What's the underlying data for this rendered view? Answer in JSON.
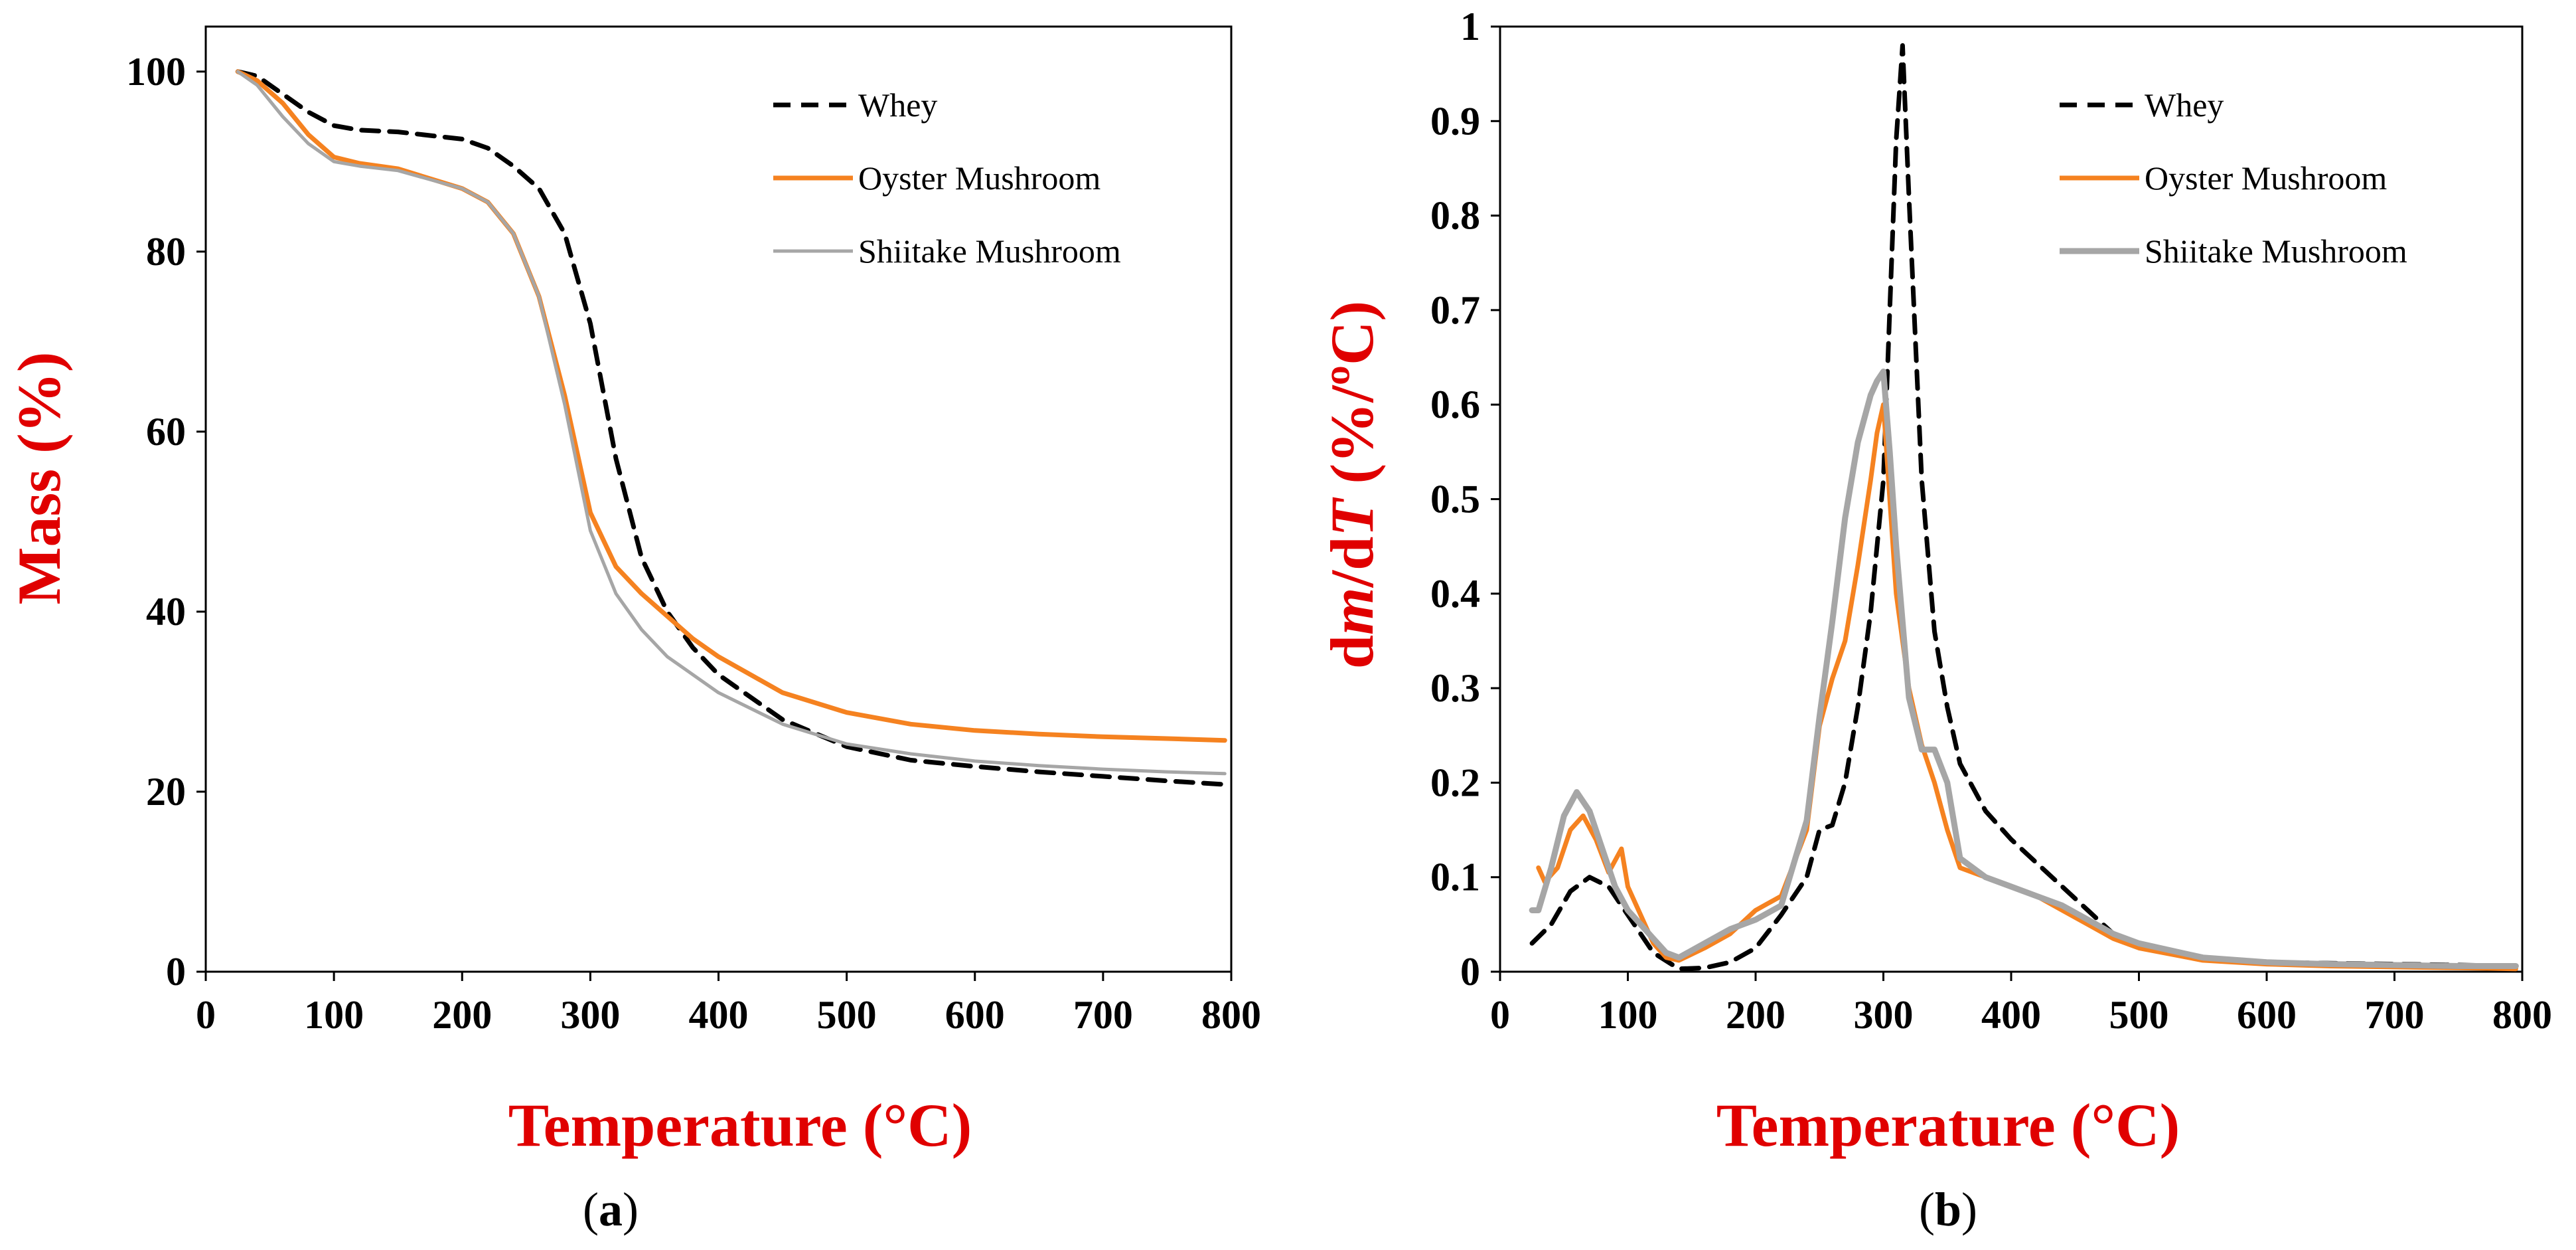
{
  "colors": {
    "whey": "#000000",
    "oyster": "#f58220",
    "shiitake": "#a6a6a6",
    "axis_label": "#e00000"
  },
  "chart_data": [
    {
      "type": "line",
      "panel_label": "(a)",
      "panel_letter": "a",
      "title": "",
      "xlabel": "Temperature (°C)",
      "ylabel": "Mass (%)",
      "xlim": [
        0,
        800
      ],
      "ylim": [
        0,
        105
      ],
      "xticks": [
        0,
        100,
        200,
        300,
        400,
        500,
        600,
        700,
        800
      ],
      "yticks": [
        0,
        20,
        40,
        60,
        80,
        100
      ],
      "grid": false,
      "legend": "top-right",
      "series": [
        {
          "name": "Whey",
          "style": "dashed",
          "color": "#000000",
          "x": [
            25,
            40,
            60,
            80,
            100,
            120,
            150,
            200,
            220,
            240,
            260,
            280,
            300,
            320,
            340,
            360,
            380,
            400,
            450,
            500,
            550,
            600,
            650,
            700,
            750,
            795
          ],
          "y": [
            100,
            99.5,
            97.5,
            95.5,
            94,
            93.5,
            93.3,
            92.5,
            91.5,
            89.5,
            87,
            82,
            72,
            57,
            46,
            40,
            36,
            33,
            28,
            25,
            23.5,
            22.8,
            22.2,
            21.7,
            21.2,
            20.8
          ]
        },
        {
          "name": "Oyster Mushroom",
          "style": "solid",
          "color": "#f58220",
          "x": [
            25,
            40,
            60,
            80,
            100,
            120,
            150,
            200,
            220,
            240,
            260,
            280,
            300,
            320,
            340,
            360,
            380,
            400,
            450,
            500,
            550,
            600,
            650,
            700,
            750,
            795
          ],
          "y": [
            100,
            99,
            96.5,
            93,
            90.5,
            89.8,
            89.2,
            87,
            85.5,
            82,
            75,
            64,
            51,
            45,
            42,
            39.5,
            37,
            35,
            31,
            28.8,
            27.5,
            26.8,
            26.4,
            26.1,
            25.9,
            25.7
          ]
        },
        {
          "name": "Shiitake Mushroom",
          "style": "solid",
          "color": "#a6a6a6",
          "x": [
            25,
            40,
            60,
            80,
            100,
            120,
            150,
            200,
            220,
            240,
            260,
            280,
            300,
            320,
            340,
            360,
            380,
            400,
            450,
            500,
            550,
            600,
            650,
            700,
            750,
            795
          ],
          "y": [
            100,
            98.5,
            95,
            92,
            90,
            89.5,
            89,
            87,
            85.5,
            82,
            75,
            63,
            49,
            42,
            38,
            35,
            33,
            31,
            27.5,
            25.3,
            24.2,
            23.4,
            22.9,
            22.5,
            22.2,
            22
          ]
        }
      ]
    },
    {
      "type": "line",
      "panel_label": "(b)",
      "panel_letter": "b",
      "title": "",
      "xlabel": "Temperature (°C)",
      "ylabel": "dm/dT (%/ºC)",
      "ylabel_parts": {
        "d1": "d",
        "m": "m",
        "slash_d": "/d",
        "T": "T",
        "rest": " (%/ºC)"
      },
      "xlim": [
        0,
        800
      ],
      "ylim": [
        0,
        1
      ],
      "xticks": [
        0,
        100,
        200,
        300,
        400,
        500,
        600,
        700,
        800
      ],
      "yticks": [
        0,
        0.1,
        0.2,
        0.3,
        0.4,
        0.5,
        0.6,
        0.7,
        0.8,
        0.9,
        1
      ],
      "grid": false,
      "legend": "top-right",
      "series": [
        {
          "name": "Whey",
          "style": "dashed",
          "color": "#000000",
          "x": [
            25,
            40,
            55,
            70,
            85,
            100,
            120,
            140,
            160,
            180,
            200,
            220,
            240,
            250,
            260,
            270,
            280,
            290,
            300,
            305,
            310,
            315,
            320,
            330,
            340,
            350,
            360,
            380,
            400,
            420,
            440,
            460,
            480,
            500,
            550,
            600,
            650,
            700,
            750,
            795
          ],
          "y": [
            0.03,
            0.05,
            0.085,
            0.1,
            0.09,
            0.06,
            0.02,
            0.003,
            0.004,
            0.01,
            0.025,
            0.06,
            0.1,
            0.15,
            0.155,
            0.2,
            0.28,
            0.38,
            0.52,
            0.7,
            0.88,
            0.98,
            0.82,
            0.52,
            0.36,
            0.28,
            0.22,
            0.17,
            0.14,
            0.115,
            0.09,
            0.065,
            0.04,
            0.027,
            0.015,
            0.01,
            0.009,
            0.008,
            0.007,
            0.006
          ]
        },
        {
          "name": "Oyster Mushroom",
          "style": "solid",
          "color": "#f58220",
          "x": [
            30,
            35,
            45,
            55,
            65,
            75,
            85,
            95,
            100,
            110,
            120,
            130,
            140,
            160,
            180,
            200,
            220,
            240,
            250,
            260,
            270,
            280,
            290,
            295,
            300,
            305,
            310,
            320,
            330,
            340,
            350,
            360,
            380,
            400,
            420,
            440,
            460,
            480,
            500,
            550,
            600,
            650,
            700,
            750,
            795
          ],
          "y": [
            0.11,
            0.095,
            0.11,
            0.15,
            0.165,
            0.14,
            0.105,
            0.13,
            0.09,
            0.06,
            0.03,
            0.015,
            0.012,
            0.025,
            0.04,
            0.065,
            0.08,
            0.15,
            0.26,
            0.31,
            0.35,
            0.43,
            0.52,
            0.57,
            0.6,
            0.5,
            0.4,
            0.3,
            0.24,
            0.2,
            0.15,
            0.11,
            0.1,
            0.09,
            0.08,
            0.065,
            0.05,
            0.035,
            0.025,
            0.012,
            0.008,
            0.006,
            0.005,
            0.004,
            0.003
          ]
        },
        {
          "name": "Shiitake Mushroom",
          "style": "solid",
          "color": "#a6a6a6",
          "x": [
            25,
            30,
            40,
            50,
            60,
            70,
            80,
            90,
            100,
            110,
            120,
            130,
            140,
            160,
            180,
            200,
            220,
            240,
            250,
            260,
            270,
            280,
            290,
            295,
            300,
            305,
            310,
            320,
            330,
            340,
            350,
            360,
            380,
            400,
            420,
            440,
            460,
            480,
            500,
            550,
            600,
            650,
            700,
            750,
            795
          ],
          "y": [
            0.065,
            0.065,
            0.11,
            0.165,
            0.19,
            0.17,
            0.13,
            0.09,
            0.065,
            0.05,
            0.035,
            0.02,
            0.015,
            0.03,
            0.045,
            0.055,
            0.07,
            0.16,
            0.27,
            0.37,
            0.48,
            0.56,
            0.61,
            0.625,
            0.635,
            0.55,
            0.45,
            0.29,
            0.235,
            0.235,
            0.2,
            0.12,
            0.1,
            0.09,
            0.08,
            0.07,
            0.055,
            0.04,
            0.03,
            0.015,
            0.01,
            0.008,
            0.007,
            0.006,
            0.006
          ]
        }
      ]
    }
  ]
}
